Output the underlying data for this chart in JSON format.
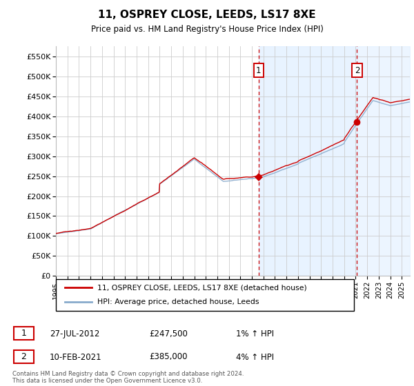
{
  "title": "11, OSPREY CLOSE, LEEDS, LS17 8XE",
  "subtitle": "Price paid vs. HM Land Registry's House Price Index (HPI)",
  "ylabel_ticks": [
    "£0",
    "£50K",
    "£100K",
    "£150K",
    "£200K",
    "£250K",
    "£300K",
    "£350K",
    "£400K",
    "£450K",
    "£500K",
    "£550K"
  ],
  "ytick_values": [
    0,
    50000,
    100000,
    150000,
    200000,
    250000,
    300000,
    350000,
    400000,
    450000,
    500000,
    550000
  ],
  "ylim": [
    0,
    575000
  ],
  "xlim_start": 1995.0,
  "xlim_end": 2025.7,
  "sale1_x": 2012.57,
  "sale1_y": 247500,
  "sale2_x": 2021.12,
  "sale2_y": 385000,
  "vline1_x": 2012.57,
  "vline2_x": 2021.12,
  "legend_line1": "11, OSPREY CLOSE, LEEDS, LS17 8XE (detached house)",
  "legend_line2": "HPI: Average price, detached house, Leeds",
  "annotation1_date": "27-JUL-2012",
  "annotation1_price": "£247,500",
  "annotation1_hpi": "1% ↑ HPI",
  "annotation2_date": "10-FEB-2021",
  "annotation2_price": "£385,000",
  "annotation2_hpi": "4% ↑ HPI",
  "footnote": "Contains HM Land Registry data © Crown copyright and database right 2024.\nThis data is licensed under the Open Government Licence v3.0.",
  "line_color_red": "#cc0000",
  "line_color_blue": "#88aacc",
  "background_color": "#ffffff",
  "grid_color": "#cccccc",
  "shade_color": "#ddeeff",
  "xtick_years": [
    1995,
    1996,
    1997,
    1998,
    1999,
    2000,
    2001,
    2002,
    2003,
    2004,
    2005,
    2006,
    2007,
    2008,
    2009,
    2010,
    2011,
    2012,
    2013,
    2014,
    2015,
    2016,
    2017,
    2018,
    2019,
    2020,
    2021,
    2022,
    2023,
    2024,
    2025
  ]
}
